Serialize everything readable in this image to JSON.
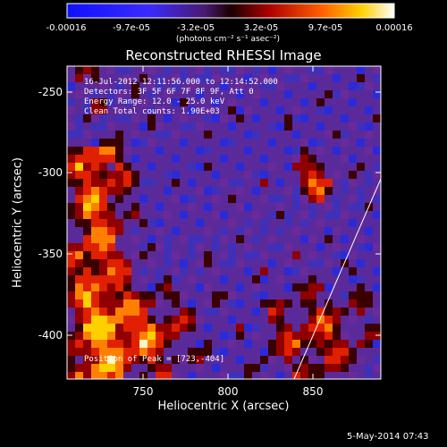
{
  "colorbar": {
    "ticks": [
      "-0.00016",
      "-9.7e-05",
      "-3.2e-05",
      "3.2e-05",
      "9.7e-05",
      "0.00016"
    ],
    "unit_label": "(photons cm⁻² s⁻¹ asec⁻²)"
  },
  "title": "Reconstructed RHESSI Image",
  "info_lines": [
    "16-Jul-2012 12:11:56.000 to 12:14:52.000",
    "Detectors: 3F 5F 6F 7F 8F 9F, Att 0",
    "Energy Range: 12.0 - 25.0 keV",
    "Clean     Total counts: 1.90E+03"
  ],
  "peak_label": "Position of Peak = [723,-404]",
  "xlabel": "Heliocentric X (arcsec)",
  "ylabel": "Heliocentric Y (arcsec)",
  "x_ticks": [
    "750",
    "800",
    "850"
  ],
  "y_ticks": [
    "-250",
    "-300",
    "-350",
    "-400"
  ],
  "footer_date": "5-May-2014 07:43",
  "colors": {
    "background": "#000000",
    "map_base": "#5a2a9a",
    "limb_line": "#ffffff"
  }
}
